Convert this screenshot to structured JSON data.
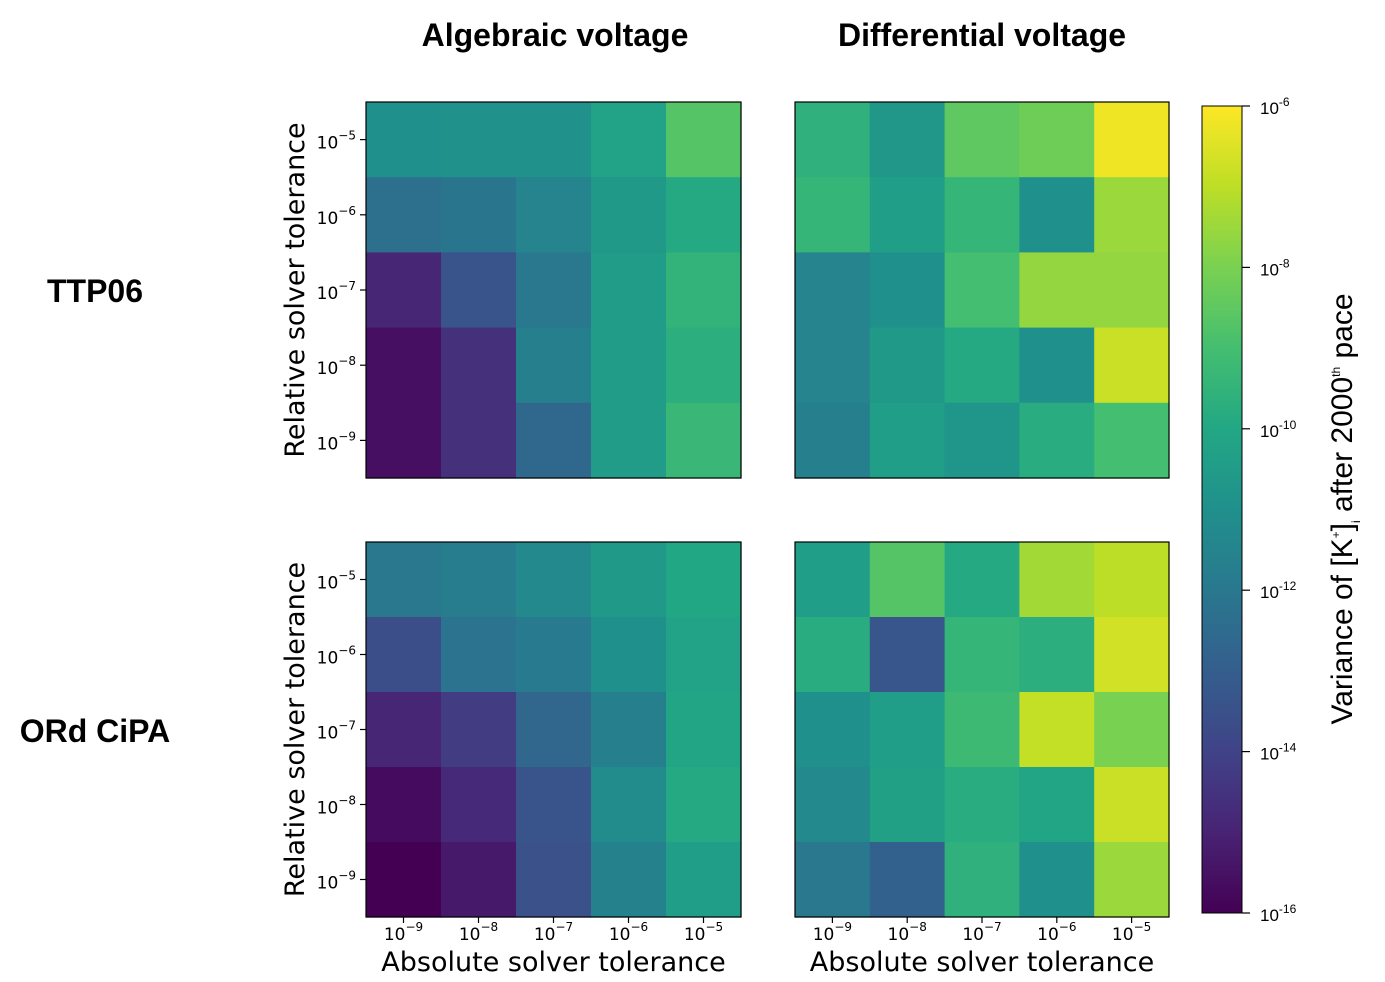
{
  "column_titles": [
    "Algebraic voltage",
    "Differential voltage"
  ],
  "row_titles": [
    "TTP06",
    "ORd CiPA"
  ],
  "colorbar": {
    "label_prefix": "Variance of [K",
    "label_sup1": "+",
    "label_mid": "]",
    "label_sub": "i",
    "label_after": " after 2000",
    "label_sup2": "th",
    "label_end": " pace",
    "colormap": "viridis",
    "scale": "log",
    "range": [
      1e-16,
      1e-06
    ],
    "ticks": [
      {
        "base": "10",
        "exp": "-6",
        "value": 1e-06
      },
      {
        "base": "10",
        "exp": "-8",
        "value": 1e-08
      },
      {
        "base": "10",
        "exp": "-10",
        "value": 1e-10
      },
      {
        "base": "10",
        "exp": "-12",
        "value": 1e-12
      },
      {
        "base": "10",
        "exp": "-14",
        "value": 1e-14
      },
      {
        "base": "10",
        "exp": "-16",
        "value": 1e-16
      }
    ]
  },
  "chart_data": [
    {
      "type": "heatmap",
      "row_title": "TTP06",
      "column_title": "Algebraic voltage",
      "xlabel": "",
      "ylabel": "Relative solver tolerance",
      "x_ticks": [
        "10^-9",
        "10^-8",
        "10^-7",
        "10^-6",
        "10^-5"
      ],
      "y_ticks": [
        "10^-5",
        "10^-6",
        "10^-7",
        "10^-8",
        "10^-9"
      ],
      "log10_values": [
        [
          -11.0,
          -10.9,
          -10.9,
          -10.2,
          -8.7
        ],
        [
          -12.3,
          -12.1,
          -11.5,
          -10.6,
          -9.9
        ],
        [
          -14.9,
          -13.4,
          -12.0,
          -10.5,
          -9.5
        ],
        [
          -15.6,
          -14.6,
          -11.7,
          -10.5,
          -9.7
        ],
        [
          -15.6,
          -14.6,
          -12.6,
          -10.5,
          -9.3
        ]
      ]
    },
    {
      "type": "heatmap",
      "row_title": "TTP06",
      "column_title": "Differential voltage",
      "xlabel": "",
      "ylabel": "",
      "x_ticks": [
        "10^-9",
        "10^-8",
        "10^-7",
        "10^-6",
        "10^-5"
      ],
      "y_ticks": [
        "10^-5",
        "10^-6",
        "10^-7",
        "10^-8",
        "10^-9"
      ],
      "log10_values": [
        [
          -9.6,
          -10.7,
          -8.5,
          -8.2,
          -6.2
        ],
        [
          -9.4,
          -10.4,
          -9.4,
          -11.0,
          -7.5
        ],
        [
          -11.5,
          -11.0,
          -9.0,
          -7.6,
          -7.6
        ],
        [
          -11.5,
          -10.6,
          -9.9,
          -11.0,
          -6.8
        ],
        [
          -11.7,
          -10.4,
          -10.8,
          -9.8,
          -9.0
        ]
      ]
    },
    {
      "type": "heatmap",
      "row_title": "ORd CiPA",
      "column_title": "Algebraic voltage",
      "xlabel": "Absolute solver tolerance",
      "ylabel": "Relative solver tolerance",
      "x_ticks": [
        "10^-9",
        "10^-8",
        "10^-7",
        "10^-6",
        "10^-5"
      ],
      "y_ticks": [
        "10^-5",
        "10^-6",
        "10^-7",
        "10^-8",
        "10^-9"
      ],
      "log10_values": [
        [
          -12.0,
          -11.8,
          -11.3,
          -10.6,
          -10.0
        ],
        [
          -13.6,
          -12.2,
          -11.9,
          -11.0,
          -10.2
        ],
        [
          -14.9,
          -14.2,
          -12.7,
          -11.7,
          -10.1
        ],
        [
          -15.7,
          -14.8,
          -13.4,
          -11.2,
          -9.9
        ],
        [
          -16.0,
          -15.3,
          -13.5,
          -11.6,
          -10.4
        ]
      ]
    },
    {
      "type": "heatmap",
      "row_title": "ORd CiPA",
      "column_title": "Differential voltage",
      "xlabel": "Absolute solver tolerance",
      "ylabel": "",
      "x_ticks": [
        "10^-9",
        "10^-8",
        "10^-7",
        "10^-6",
        "10^-5"
      ],
      "y_ticks": [
        "10^-5",
        "10^-6",
        "10^-7",
        "10^-8",
        "10^-9"
      ],
      "log10_values": [
        [
          -10.4,
          -8.7,
          -9.9,
          -7.4,
          -7.0
        ],
        [
          -9.8,
          -13.3,
          -9.4,
          -9.7,
          -6.7
        ],
        [
          -11.0,
          -10.4,
          -9.2,
          -6.9,
          -8.0
        ],
        [
          -11.3,
          -10.3,
          -9.8,
          -10.1,
          -6.8
        ],
        [
          -12.0,
          -12.9,
          -9.6,
          -11.0,
          -7.5
        ]
      ]
    }
  ]
}
